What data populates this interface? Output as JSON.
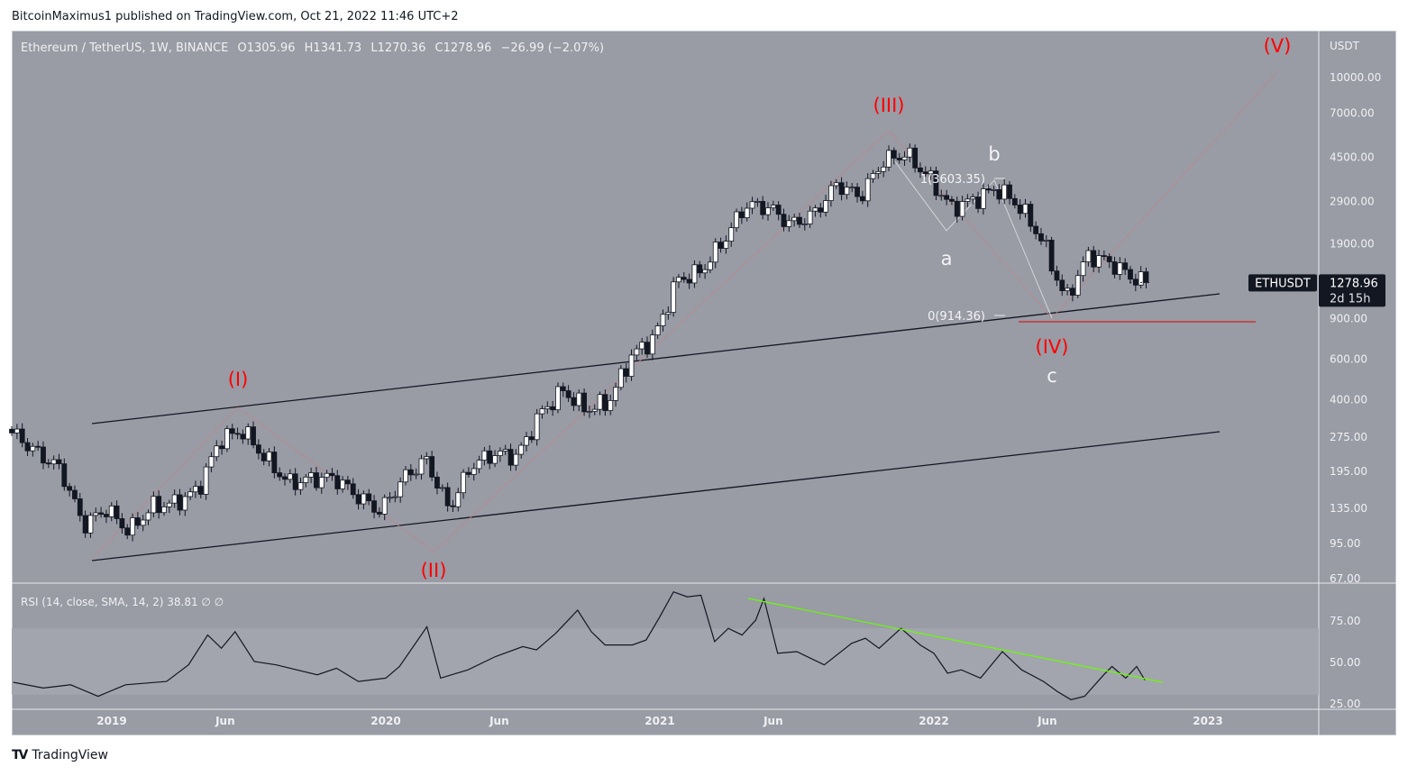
{
  "publisher_line": "BitcoinMaximus1 published on TradingView.com, Oct 21, 2022 11:46 UTC+2",
  "legend": {
    "symbol": "Ethereum / TetherUS, 1W, BINANCE",
    "open": "O1305.96",
    "high": "H1341.73",
    "low": "L1270.36",
    "close": "C1278.96",
    "change": "−26.99 (−2.07%)"
  },
  "rsi_legend": "RSI (14, close, SMA, 14, 2)  38.81  ∅  ∅",
  "price_badge": {
    "ticker": "ETHUSDT",
    "price": "1278.96",
    "countdown": "2d 15h"
  },
  "footer_brand": "TradingView",
  "colors": {
    "background": "#999ba5",
    "up_candle": "#ffffff",
    "down_candle": "#131722",
    "wave_labels": "#ff0000",
    "rsi_trendline": "#66ff00",
    "support_line": "#e00000"
  },
  "chart_data": {
    "type": "candlestick",
    "scale": "log",
    "currency": "USDT",
    "y_ticks": [
      "10000.00",
      "7000.00",
      "4500.00",
      "2900.00",
      "1900.00",
      "900.00",
      "600.00",
      "400.00",
      "275.00",
      "195.00",
      "135.00",
      "95.00",
      "67.00"
    ],
    "x_ticks": [
      "2019",
      "Jun",
      "2020",
      "Jun",
      "2021",
      "Jun",
      "2022",
      "Jun",
      "2023"
    ],
    "monthly_closes_approx": [
      [
        "2018-08",
        280
      ],
      [
        "2018-09",
        232
      ],
      [
        "2018-10",
        198
      ],
      [
        "2018-11",
        113
      ],
      [
        "2018-12",
        133
      ],
      [
        "2019-01",
        106
      ],
      [
        "2019-02",
        136
      ],
      [
        "2019-03",
        141
      ],
      [
        "2019-04",
        160
      ],
      [
        "2019-05",
        268
      ],
      [
        "2019-06",
        290
      ],
      [
        "2019-07",
        218
      ],
      [
        "2019-08",
        172
      ],
      [
        "2019-09",
        180
      ],
      [
        "2019-10",
        182
      ],
      [
        "2019-11",
        151
      ],
      [
        "2019-12",
        130
      ],
      [
        "2020-01",
        180
      ],
      [
        "2020-02",
        218
      ],
      [
        "2020-03",
        133
      ],
      [
        "2020-04",
        206
      ],
      [
        "2020-05",
        231
      ],
      [
        "2020-06",
        225
      ],
      [
        "2020-07",
        345
      ],
      [
        "2020-08",
        434
      ],
      [
        "2020-09",
        359
      ],
      [
        "2020-10",
        386
      ],
      [
        "2020-11",
        615
      ],
      [
        "2020-12",
        737
      ],
      [
        "2021-01",
        1314
      ],
      [
        "2021-02",
        1416
      ],
      [
        "2021-03",
        1918
      ],
      [
        "2021-04",
        2772
      ],
      [
        "2021-05",
        2707
      ],
      [
        "2021-06",
        2274
      ],
      [
        "2021-07",
        2536
      ],
      [
        "2021-08",
        3433
      ],
      [
        "2021-09",
        3000
      ],
      [
        "2021-10",
        4288
      ],
      [
        "2021-11",
        4630
      ],
      [
        "2021-12",
        3680
      ],
      [
        "2022-01",
        2688
      ],
      [
        "2022-02",
        2920
      ],
      [
        "2022-03",
        3282
      ],
      [
        "2022-04",
        2727
      ],
      [
        "2022-05",
        1942
      ],
      [
        "2022-06",
        1070
      ],
      [
        "2022-07",
        1680
      ],
      [
        "2022-08",
        1553
      ],
      [
        "2022-09",
        1328
      ],
      [
        "2022-10",
        1278.96
      ]
    ],
    "wave_labels": [
      "(I)",
      "(II)",
      "(III)",
      "(IV)",
      "(V)"
    ],
    "sub_wave_labels": [
      "a",
      "b",
      "c"
    ],
    "fib_labels": [
      "1(3603.35)",
      "0(914.36)"
    ],
    "rsi": {
      "params": "14, close, SMA, 14, 2",
      "value": 38.81,
      "y_ticks": [
        "75.00",
        "50.00",
        "25.00"
      ],
      "band": [
        30,
        70
      ],
      "points_approx": [
        [
          2018.64,
          37.5
        ],
        [
          2018.75,
          34
        ],
        [
          2018.85,
          36
        ],
        [
          2018.95,
          29
        ],
        [
          2019.05,
          36
        ],
        [
          2019.2,
          38
        ],
        [
          2019.28,
          48
        ],
        [
          2019.35,
          66
        ],
        [
          2019.4,
          58
        ],
        [
          2019.45,
          68
        ],
        [
          2019.52,
          50
        ],
        [
          2019.6,
          48
        ],
        [
          2019.75,
          42
        ],
        [
          2019.82,
          46
        ],
        [
          2019.9,
          38
        ],
        [
          2020.0,
          40
        ],
        [
          2020.05,
          47
        ],
        [
          2020.15,
          71
        ],
        [
          2020.2,
          40
        ],
        [
          2020.3,
          45
        ],
        [
          2020.4,
          53
        ],
        [
          2020.5,
          59
        ],
        [
          2020.55,
          57
        ],
        [
          2020.62,
          67
        ],
        [
          2020.7,
          81
        ],
        [
          2020.75,
          68
        ],
        [
          2020.8,
          60
        ],
        [
          2020.9,
          60
        ],
        [
          2020.95,
          63
        ],
        [
          2021.0,
          77
        ],
        [
          2021.05,
          92
        ],
        [
          2021.1,
          89
        ],
        [
          2021.15,
          90
        ],
        [
          2021.2,
          62
        ],
        [
          2021.25,
          70
        ],
        [
          2021.3,
          66
        ],
        [
          2021.35,
          75
        ],
        [
          2021.38,
          88
        ],
        [
          2021.43,
          55
        ],
        [
          2021.5,
          56
        ],
        [
          2021.6,
          48
        ],
        [
          2021.7,
          61
        ],
        [
          2021.75,
          64
        ],
        [
          2021.8,
          58
        ],
        [
          2021.88,
          70
        ],
        [
          2021.95,
          60
        ],
        [
          2022.0,
          55
        ],
        [
          2022.05,
          43
        ],
        [
          2022.1,
          45
        ],
        [
          2022.17,
          40
        ],
        [
          2022.25,
          56
        ],
        [
          2022.32,
          45
        ],
        [
          2022.4,
          38
        ],
        [
          2022.45,
          32
        ],
        [
          2022.5,
          27
        ],
        [
          2022.55,
          29
        ],
        [
          2022.62,
          42
        ],
        [
          2022.65,
          47
        ],
        [
          2022.7,
          40
        ],
        [
          2022.74,
          47
        ],
        [
          2022.77,
          38.81
        ]
      ]
    }
  }
}
